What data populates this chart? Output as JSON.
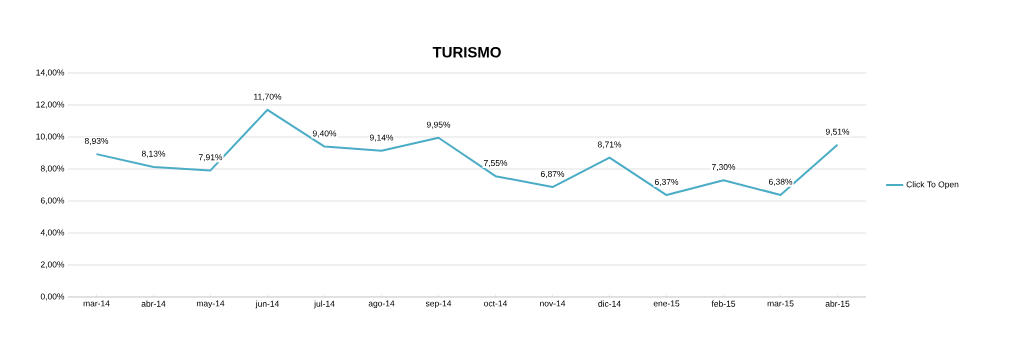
{
  "chart_data": {
    "type": "line",
    "title": "TURISMO",
    "categories": [
      "mar-14",
      "abr-14",
      "may-14",
      "jun-14",
      "jul-14",
      "ago-14",
      "sep-14",
      "oct-14",
      "nov-14",
      "dic-14",
      "ene-15",
      "feb-15",
      "mar-15",
      "abr-15"
    ],
    "series": [
      {
        "name": "Click To Open",
        "color": "#4bacc6",
        "values": [
          8.93,
          8.13,
          7.91,
          11.7,
          9.4,
          9.14,
          9.95,
          7.55,
          6.87,
          8.71,
          6.37,
          7.3,
          6.38,
          9.51
        ],
        "value_labels": [
          "8,93%",
          "8,13%",
          "7,91%",
          "11,70%",
          "9,40%",
          "9,14%",
          "9,95%",
          "7,55%",
          "6,87%",
          "8,71%",
          "6,37%",
          "7,30%",
          "6,38%",
          "9,51%"
        ]
      }
    ],
    "ylim": [
      0,
      14
    ],
    "yticks": [
      {
        "value": 0,
        "label": "0,00%"
      },
      {
        "value": 2,
        "label": "2,00%"
      },
      {
        "value": 4,
        "label": "4,00%"
      },
      {
        "value": 6,
        "label": "6,00%"
      },
      {
        "value": 8,
        "label": "8,00%"
      },
      {
        "value": 10,
        "label": "10,00%"
      },
      {
        "value": 12,
        "label": "12,00%"
      },
      {
        "value": 14,
        "label": "14,00%"
      }
    ],
    "grid": "y",
    "legend": "right",
    "marker": "none",
    "line_style": "solid"
  }
}
